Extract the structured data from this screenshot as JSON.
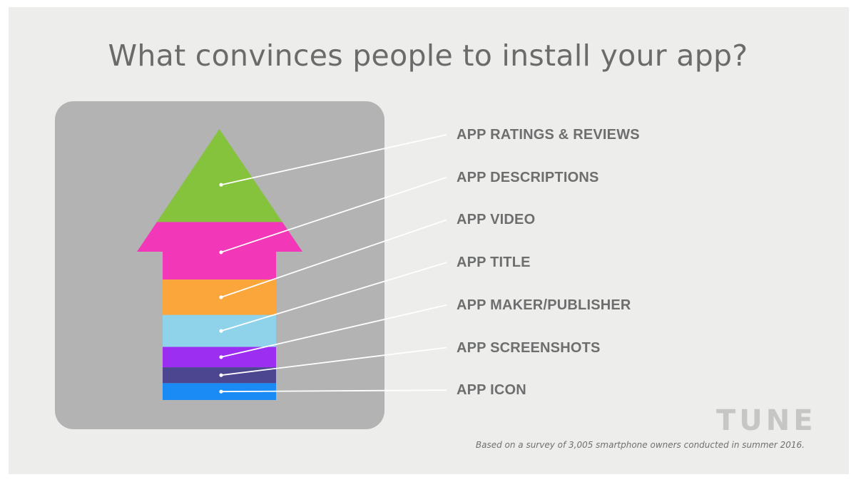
{
  "title": "What convinces people to install your app?",
  "chart_data": {
    "type": "stacked-arrow",
    "order": "top-to-bottom",
    "categories": [
      "APP RATINGS & REVIEWS",
      "APP DESCRIPTIONS",
      "APP VIDEO",
      "APP TITLE",
      "APP MAKER/PUBLISHER",
      "APP SCREENSHOTS",
      "APP ICON"
    ],
    "colors": [
      "#84c33b",
      "#f237b8",
      "#fba63a",
      "#8fd3ea",
      "#9c2ef2",
      "#4c4590",
      "#1a8af5"
    ],
    "relative_sizes": [
      10.5,
      6.5,
      4.0,
      3.6,
      2.3,
      1.8,
      1.9
    ]
  },
  "logo": "TUNE",
  "footnote": "Based on a survey of 3,005 smartphone owners conducted in summer 2016."
}
